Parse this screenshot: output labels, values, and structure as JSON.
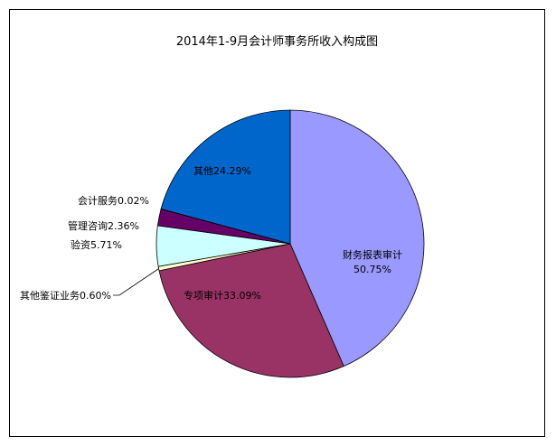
{
  "chart_data": {
    "type": "pie",
    "title": "2014年1-9月会计师事务所收入构成图",
    "slices": [
      {
        "name": "财务报表审计",
        "label_line1": "财务报表审计",
        "label_line2": "50.75%",
        "value": 50.75,
        "color": "#9999FF"
      },
      {
        "name": "专项审计",
        "label_line1": "专项审计33.09%",
        "label_line2": "",
        "value": 33.09,
        "color": "#993366"
      },
      {
        "name": "其他鉴证业务",
        "label_line1": "其他鉴证业务0.60%",
        "label_line2": "",
        "value": 0.6,
        "color": "#FFFFCC"
      },
      {
        "name": "验资",
        "label_line1": "验资5.71%",
        "label_line2": "",
        "value": 5.71,
        "color": "#CCFFFF"
      },
      {
        "name": "管理咨询",
        "label_line1": "管理咨询2.36%",
        "label_line2": "",
        "value": 2.36,
        "color": "#660066"
      },
      {
        "name": "会计服务",
        "label_line1": "会计服务0.02%",
        "label_line2": "",
        "value": 0.02,
        "color": "#FF8080"
      },
      {
        "name": "其他",
        "label_line1": "其他24.29%",
        "label_line2": "",
        "value": 24.29,
        "color": "#0066CC"
      }
    ],
    "legend": "none"
  }
}
